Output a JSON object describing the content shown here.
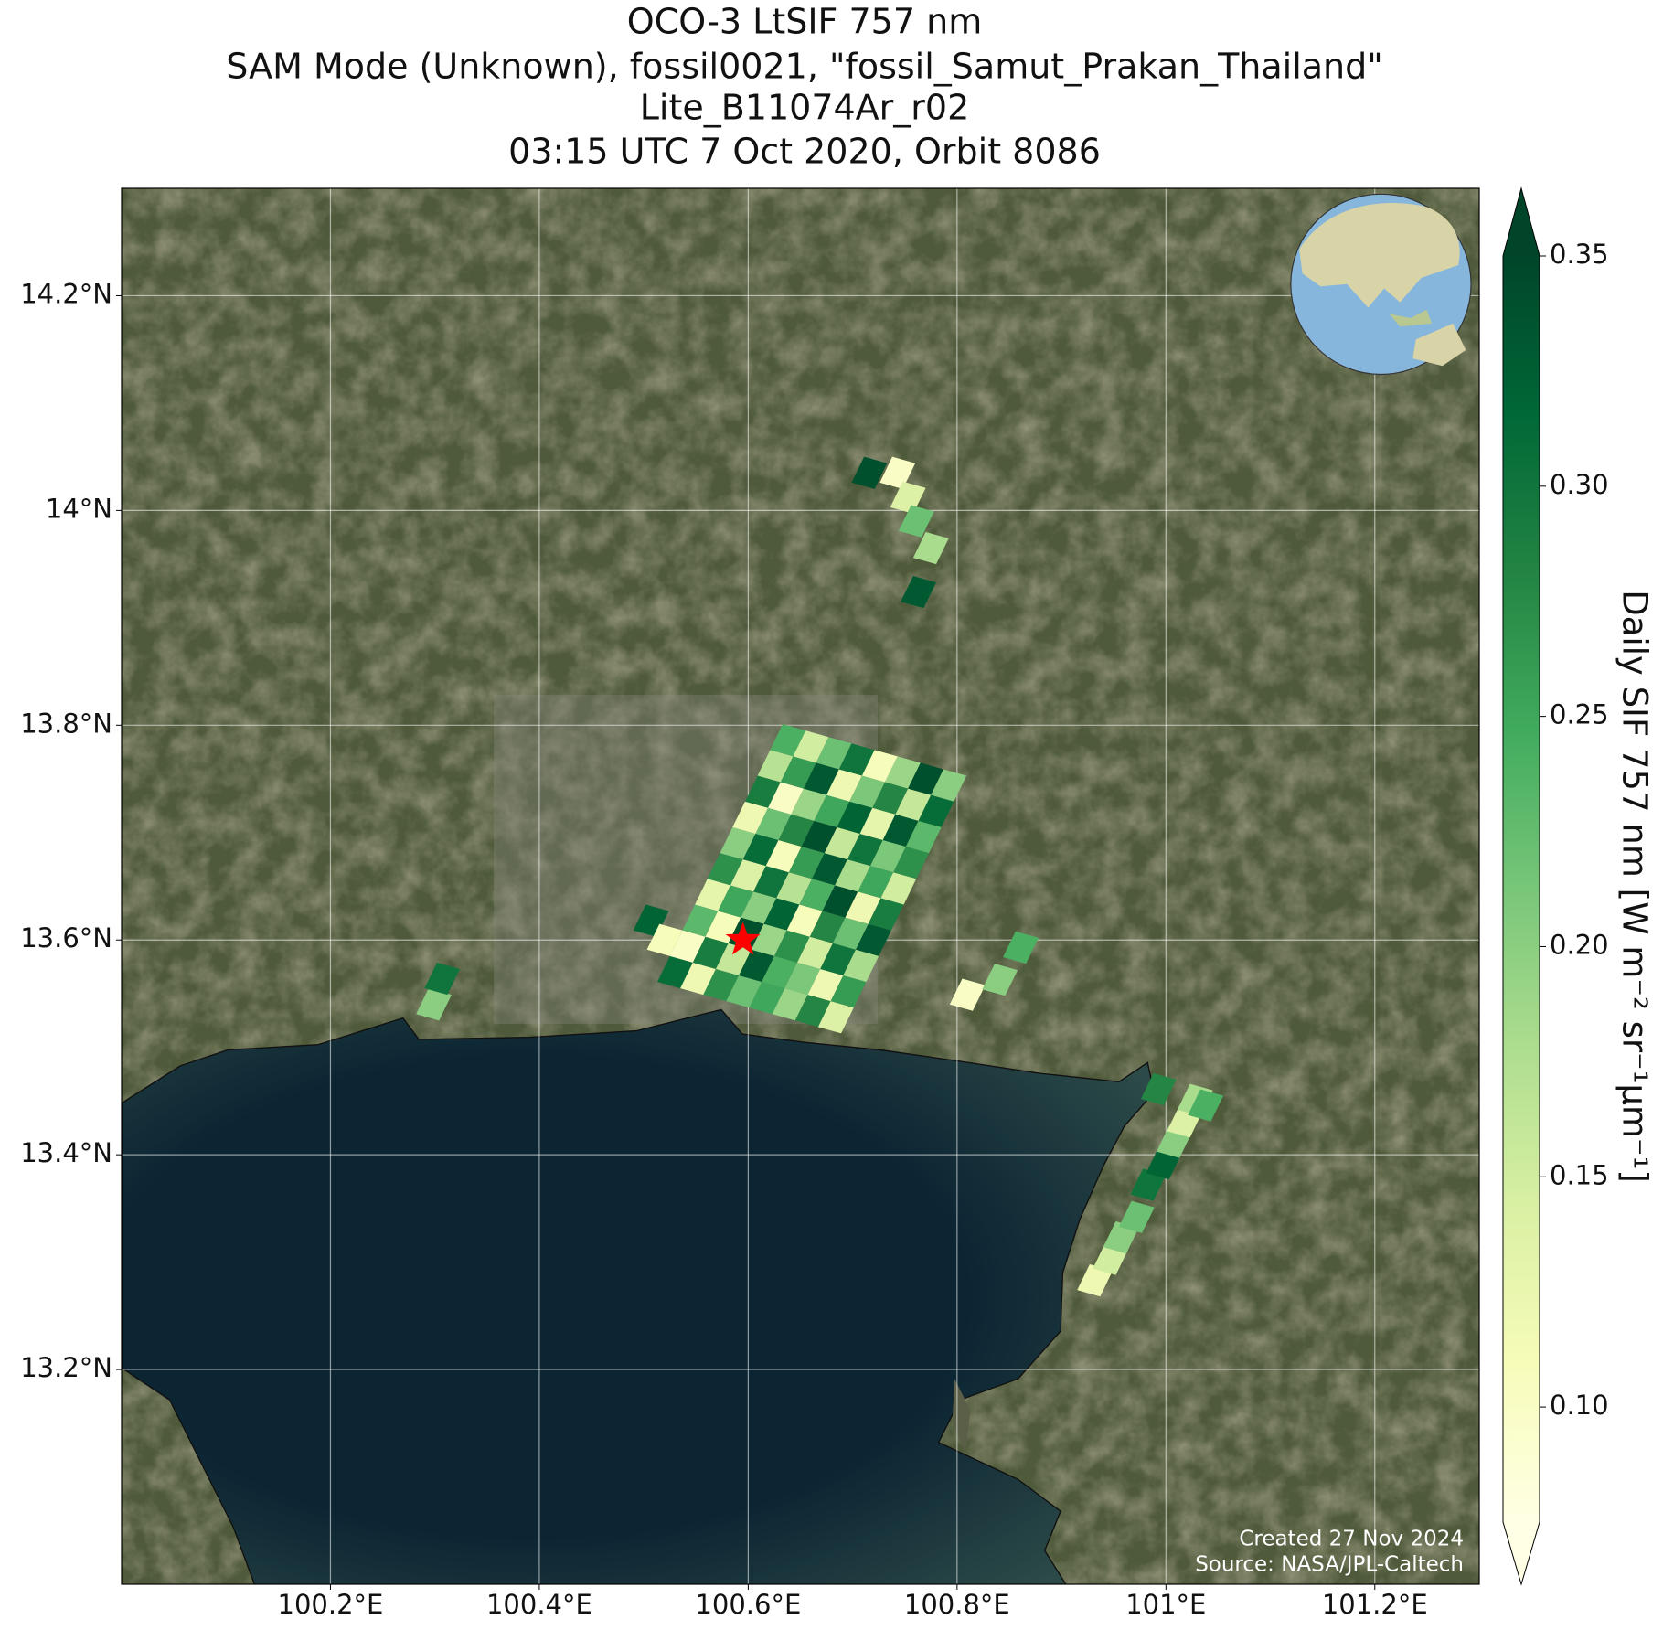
{
  "chart_data": {
    "type": "map",
    "title": [
      "OCO-3 LtSIF 757 nm",
      "SAM Mode (Unknown), fossil0021, \"fossil_Samut_Prakan_Thailand\"",
      "Lite_B11074Ar_r02",
      "03:15 UTC 7 Oct 2020, Orbit 8086"
    ],
    "xlim": [
      100.0,
      101.3
    ],
    "ylim": [
      13.0,
      14.3
    ],
    "xticks": [
      {
        "value": 100.2,
        "label": "100.2°E"
      },
      {
        "value": 100.4,
        "label": "100.4°E"
      },
      {
        "value": 100.6,
        "label": "100.6°E"
      },
      {
        "value": 100.8,
        "label": "100.8°E"
      },
      {
        "value": 101,
        "label": "101°E"
      },
      {
        "value": 101.2,
        "label": "101.2°E"
      }
    ],
    "yticks": [
      {
        "value": 13.2,
        "label": "13.2°N"
      },
      {
        "value": 13.4,
        "label": "13.4°N"
      },
      {
        "value": 13.6,
        "label": "13.6°N"
      },
      {
        "value": 13.8,
        "label": "13.8°N"
      },
      {
        "value": 14,
        "label": "14°N"
      },
      {
        "value": 14.2,
        "label": "14.2°N"
      }
    ],
    "grid": true,
    "colormap": [
      "#ffffe5",
      "#f7fcb9",
      "#d9f0a3",
      "#addd8e",
      "#78c679",
      "#41ab5d",
      "#238443",
      "#006837",
      "#004529"
    ],
    "colorbar": {
      "label": "Daily SIF 757 nm [W m⁻² sr⁻¹µm⁻¹]",
      "clim": [
        0.075,
        0.35
      ],
      "ticks": [
        {
          "value": 0.1,
          "label": "0.10"
        },
        0.15,
        {
          "value": 0.2,
          "label": "0.20"
        },
        0.25,
        {
          "value": 0.3,
          "label": "0.30"
        },
        0.35
      ]
    },
    "target": {
      "lon": 100.595,
      "lat": 13.6,
      "color": "#ff0000"
    },
    "annotations": [
      "Created 27 Nov 2024",
      "Source: NASA/JPL-Caltech"
    ],
    "footprints": {
      "lon": [
        100.53,
        100.552,
        100.574,
        100.596,
        100.618,
        100.64,
        100.662,
        100.684,
        100.542,
        100.564,
        100.586,
        100.608,
        100.63,
        100.652,
        100.674,
        100.696,
        100.554,
        100.576,
        100.598,
        100.62,
        100.642,
        100.664,
        100.686,
        100.708,
        100.566,
        100.588,
        100.61,
        100.632,
        100.654,
        100.676,
        100.698,
        100.72,
        100.578,
        100.6,
        100.622,
        100.644,
        100.666,
        100.688,
        100.71,
        100.732,
        100.59,
        100.612,
        100.634,
        100.656,
        100.678,
        100.7,
        100.722,
        100.744,
        100.602,
        100.624,
        100.646,
        100.668,
        100.69,
        100.712,
        100.734,
        100.756,
        100.614,
        100.636,
        100.658,
        100.68,
        100.702,
        100.724,
        100.746,
        100.768,
        100.626,
        100.648,
        100.67,
        100.692,
        100.714,
        100.736,
        100.758,
        100.78,
        100.638,
        100.66,
        100.682,
        100.704,
        100.726,
        100.748,
        100.77,
        100.792,
        100.743,
        100.753,
        100.761,
        100.775,
        100.763,
        100.716,
        100.932,
        100.947,
        100.957,
        100.972,
        100.983,
        100.998,
        101.008,
        101.018,
        101.028,
        100.993,
        101.038,
        100.81,
        100.841,
        100.861,
        100.299,
        100.307,
        100.507,
        100.52
      ],
      "lat": [
        13.57,
        13.564,
        13.558,
        13.552,
        13.546,
        13.54,
        13.534,
        13.528,
        13.594,
        13.588,
        13.582,
        13.576,
        13.57,
        13.564,
        13.558,
        13.552,
        13.618,
        13.612,
        13.606,
        13.6,
        13.594,
        13.588,
        13.582,
        13.576,
        13.642,
        13.636,
        13.63,
        13.624,
        13.618,
        13.612,
        13.606,
        13.6,
        13.666,
        13.66,
        13.654,
        13.648,
        13.642,
        13.636,
        13.63,
        13.624,
        13.69,
        13.684,
        13.678,
        13.672,
        13.666,
        13.66,
        13.654,
        13.648,
        13.714,
        13.708,
        13.702,
        13.696,
        13.69,
        13.684,
        13.678,
        13.672,
        13.738,
        13.732,
        13.726,
        13.72,
        13.714,
        13.708,
        13.702,
        13.696,
        13.762,
        13.756,
        13.75,
        13.744,
        13.738,
        13.732,
        13.726,
        13.72,
        13.786,
        13.78,
        13.774,
        13.768,
        13.762,
        13.756,
        13.75,
        13.744,
        14.035,
        14.012,
        13.99,
        13.965,
        13.924,
        14.035,
        13.283,
        13.303,
        13.323,
        13.342,
        13.372,
        13.392,
        13.412,
        13.431,
        13.451,
        13.461,
        13.446,
        13.549,
        13.563,
        13.593,
        13.54,
        13.564,
        13.618,
        13.6
      ],
      "values": [
        0.31,
        0.12,
        0.27,
        0.22,
        0.25,
        0.19,
        0.28,
        0.14,
        0.1,
        0.29,
        0.16,
        0.33,
        0.24,
        0.21,
        0.12,
        0.26,
        0.23,
        0.11,
        0.34,
        0.19,
        0.27,
        0.15,
        0.3,
        0.18,
        0.13,
        0.25,
        0.2,
        0.32,
        0.11,
        0.28,
        0.22,
        0.33,
        0.27,
        0.14,
        0.3,
        0.17,
        0.24,
        0.34,
        0.12,
        0.29,
        0.2,
        0.31,
        0.11,
        0.26,
        0.33,
        0.18,
        0.25,
        0.15,
        0.12,
        0.22,
        0.28,
        0.34,
        0.16,
        0.3,
        0.21,
        0.27,
        0.29,
        0.1,
        0.19,
        0.25,
        0.32,
        0.13,
        0.33,
        0.23,
        0.17,
        0.26,
        0.33,
        0.12,
        0.21,
        0.28,
        0.16,
        0.31,
        0.24,
        0.15,
        0.22,
        0.3,
        0.11,
        0.19,
        0.34,
        0.2,
        0.1,
        0.14,
        0.22,
        0.18,
        0.33,
        0.34,
        0.12,
        0.15,
        0.2,
        0.22,
        0.3,
        0.32,
        0.2,
        0.14,
        0.18,
        0.28,
        0.24,
        0.1,
        0.2,
        0.24,
        0.2,
        0.3,
        0.32,
        0.11
      ]
    }
  }
}
